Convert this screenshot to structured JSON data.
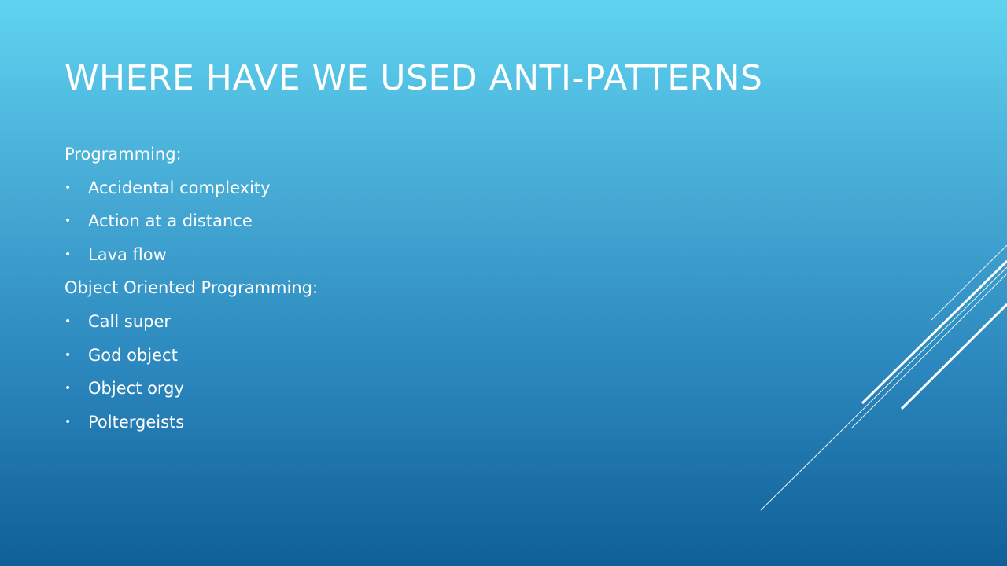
{
  "slide": {
    "title": "WHERE HAVE WE USED ANTI-PATTERNS",
    "sections": [
      {
        "heading": "Programming:",
        "items": [
          "Accidental complexity",
          "Action at a distance",
          "Lava flow"
        ]
      },
      {
        "heading": "Object Oriented Programming:",
        "items": [
          "Call super",
          "God object",
          "Object orgy",
          "Poltergeists"
        ]
      }
    ],
    "bullet_glyph": "•"
  },
  "colors": {
    "background_top": "#5fd3f0",
    "background_bottom": "#0f5f98",
    "text": "#ffffff"
  }
}
